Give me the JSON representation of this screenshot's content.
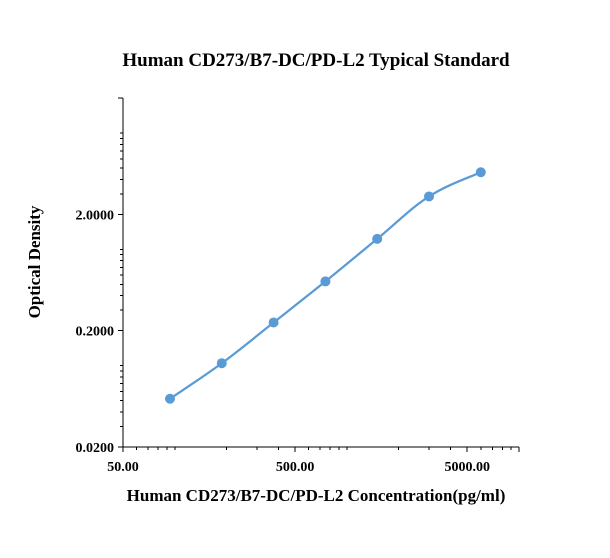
{
  "chart_data": {
    "type": "scatter",
    "title": "Human CD273/B7-DC/PD-L2 Typical Standard",
    "xlabel": "Human CD273/B7-DC/PD-L2 Concentration(pg/ml)",
    "ylabel": "Optical Density",
    "xscale": "log",
    "yscale": "log",
    "xlim": [
      50,
      10000
    ],
    "ylim": [
      0.02,
      20
    ],
    "xticks": [
      50,
      500,
      5000
    ],
    "xtick_labels": [
      "50.00",
      "500.00",
      "5000.00"
    ],
    "yticks": [
      0.02,
      0.2,
      2
    ],
    "ytick_labels": [
      "0.0200",
      "0.2000",
      "2.0000"
    ],
    "grid": false,
    "legend": "none",
    "series": [
      {
        "x": [
          93.75,
          187.5,
          375,
          750,
          1500,
          3000,
          6000
        ],
        "y": [
          0.052,
          0.105,
          0.235,
          0.53,
          1.23,
          2.85,
          4.6
        ],
        "color": "#5b9bd5",
        "line": "smooth",
        "marker": "circle"
      }
    ]
  }
}
